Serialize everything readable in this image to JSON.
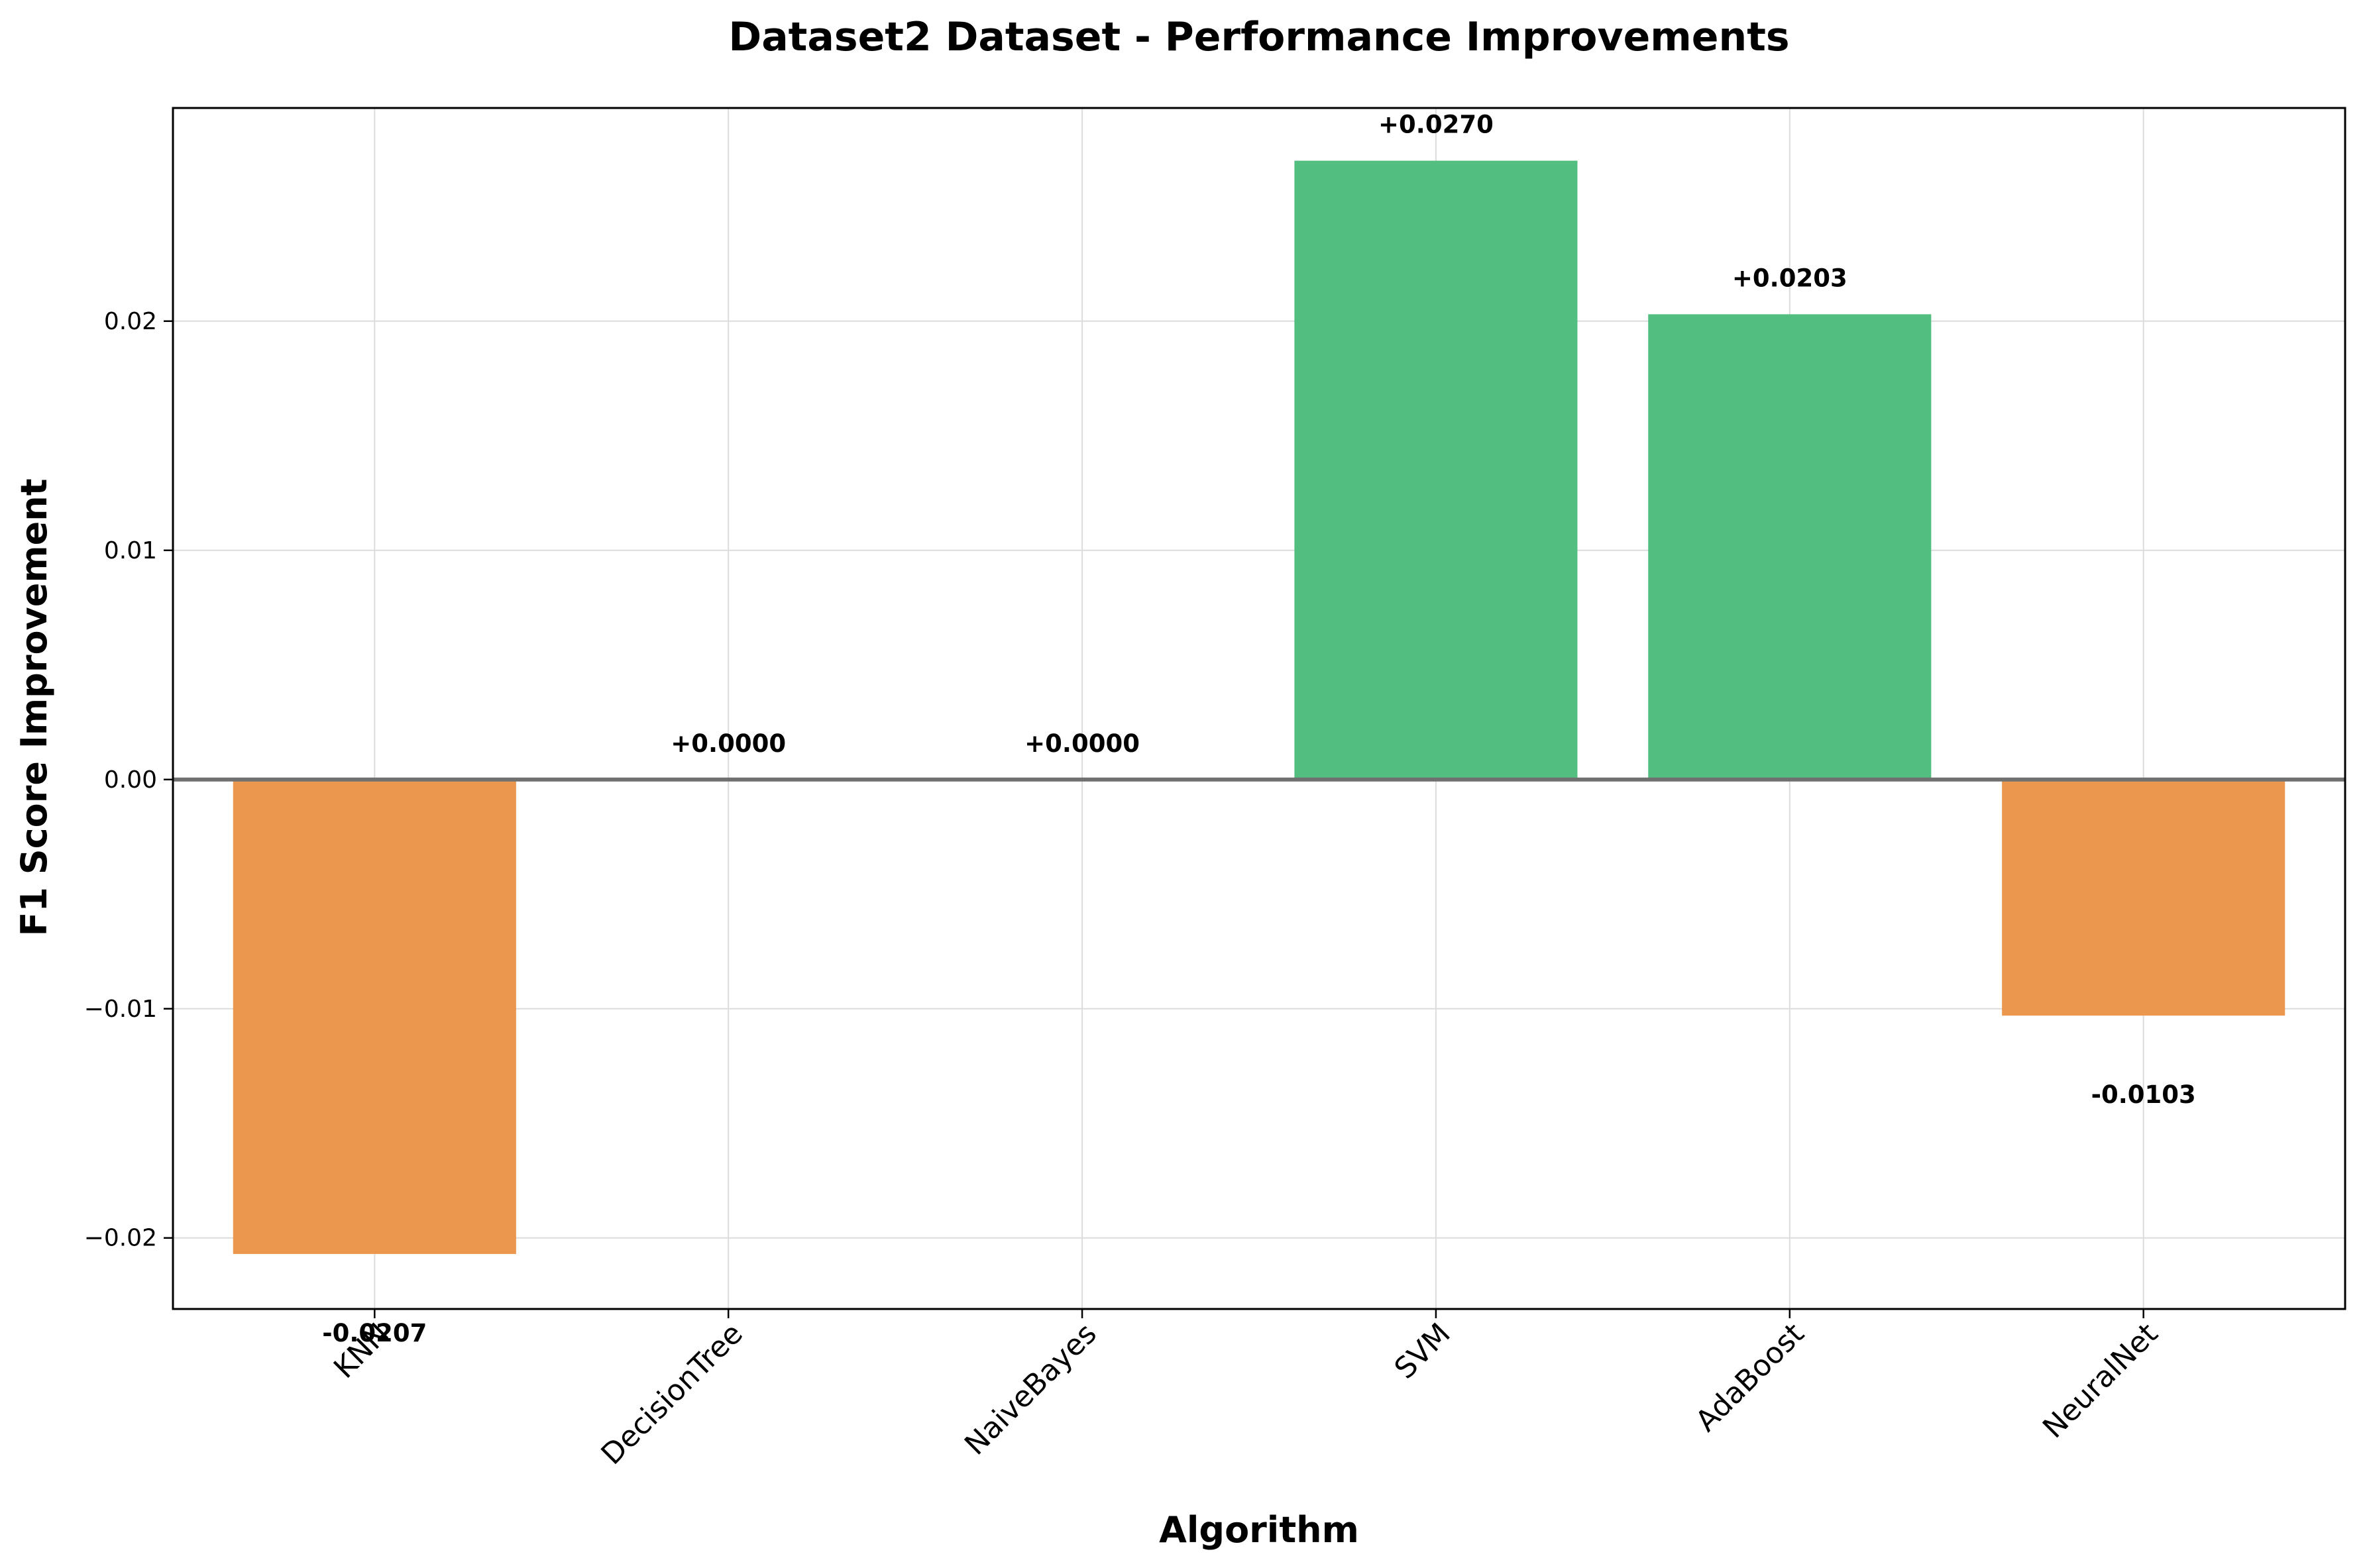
{
  "chart_data": {
    "type": "bar",
    "title": "Dataset2 Dataset - Performance Improvements",
    "xlabel": "Algorithm",
    "ylabel": "F1 Score Improvement",
    "categories": [
      "KNN",
      "DecisionTree",
      "NaiveBayes",
      "SVM",
      "AdaBoost",
      "NeuralNet"
    ],
    "values": [
      -0.0207,
      0.0,
      0.0,
      0.027,
      0.0203,
      -0.0103
    ],
    "data_labels": [
      "-0.0207",
      "+0.0000",
      "+0.0000",
      "+0.0270",
      "+0.0203",
      "-0.0103"
    ],
    "yticks": [
      -0.02,
      -0.01,
      0.0,
      0.01,
      0.02
    ],
    "ytick_labels": [
      "−0.02",
      "−0.01",
      "0.00",
      "0.01",
      "0.02"
    ],
    "ylim": [
      -0.0231,
      0.0293
    ],
    "grid": true,
    "colors": {
      "positive": "#52be80",
      "negative": "#eb984e",
      "zero_line": "#707070"
    }
  }
}
